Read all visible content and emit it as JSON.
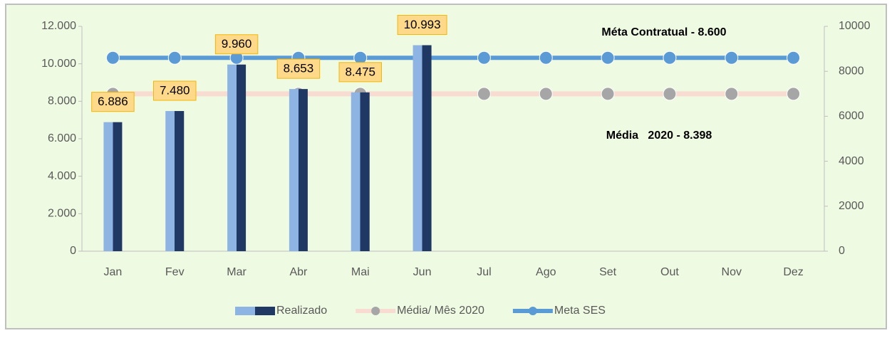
{
  "chart_data": {
    "type": "bar",
    "categories": [
      "Jan",
      "Fev",
      "Mar",
      "Abr",
      "Mai",
      "Jun",
      "Jul",
      "Ago",
      "Set",
      "Out",
      "Nov",
      "Dez"
    ],
    "series": [
      {
        "name": "Realizado",
        "type": "bar",
        "color": "#8db4e2",
        "values": [
          6886,
          7480,
          9960,
          8653,
          8475,
          10993,
          null,
          null,
          null,
          null,
          null,
          null
        ],
        "value_labels": [
          "6.886",
          "7.480",
          "9.960",
          "8.653",
          "8.475",
          "10.993",
          null,
          null,
          null,
          null,
          null,
          null
        ]
      },
      {
        "name": "Média/ Mês 2020",
        "type": "line",
        "color": "#f8dcd2",
        "marker_color": "#a6a6a6",
        "values": [
          8398,
          8398,
          8398,
          8398,
          8398,
          8398,
          8398,
          8398,
          8398,
          8398,
          8398,
          8398
        ]
      },
      {
        "name": "Meta SES",
        "type": "line",
        "axis": "y2",
        "color": "#5b9bd5",
        "marker_color": "#5b9bd5",
        "values": [
          8600,
          8600,
          8600,
          8600,
          8600,
          8600,
          8600,
          8600,
          8600,
          8600,
          8600,
          8600
        ]
      }
    ],
    "ylim": [
      0,
      12000
    ],
    "yticks": [
      0,
      {
        "value": 2000,
        "label": "2.000"
      },
      {
        "value": 4000,
        "label": "4.000"
      },
      {
        "value": 6000,
        "label": "6.000"
      },
      {
        "value": 8000,
        "label": "8.000"
      },
      {
        "value": 10000,
        "label": "10.000"
      },
      {
        "value": 12000,
        "label": "12.000"
      }
    ],
    "y2lim": [
      0,
      10000
    ],
    "y2ticks": [
      0,
      2000,
      4000,
      6000,
      8000,
      10000
    ],
    "annotations": [
      "Méta Contratual - 8.600",
      "Média   2020 - 8.398"
    ]
  }
}
